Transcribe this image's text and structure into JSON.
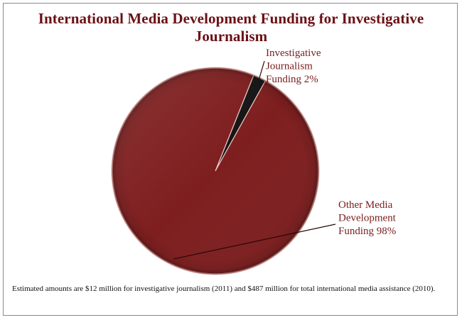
{
  "chart_data": {
    "type": "pie",
    "title": "International Media Development Funding for Investigative Journalism",
    "slices": [
      {
        "label_lines": [
          "Investigative",
          "Journalism",
          "Funding 2%"
        ],
        "value": 2,
        "color": "#141414"
      },
      {
        "label_lines": [
          "Other Media",
          "Development",
          "Funding 98%"
        ],
        "value": 98,
        "color": "#7e1e1f"
      }
    ],
    "footnote": "Estimated amounts are $12 million for investigative journalism (2011) and $487 million for total international media assistance (2010).",
    "colors": {
      "title": "#6b1015",
      "labels": "#7a1c1c",
      "rim_highlight": "#c98a86",
      "rim_shadow": "#3d0a0a"
    }
  }
}
